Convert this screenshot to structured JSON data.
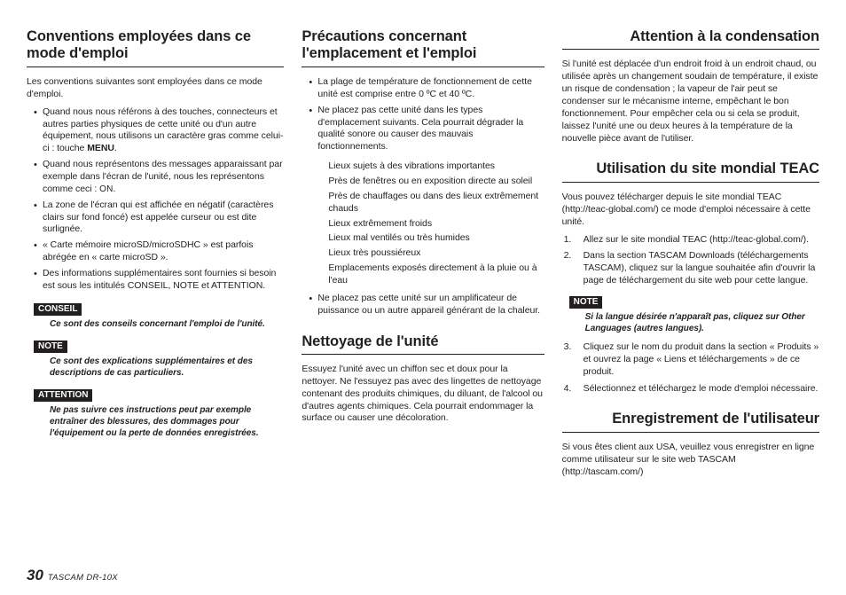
{
  "col1": {
    "h1": "Conventions employées dans ce mode d'emploi",
    "intro": "Les conventions suivantes sont employées dans ce mode d'emploi.",
    "b1a": "Quand nous nous référons à des touches, connecteurs et autres parties physiques de cette unité ou d'un autre équipement, nous utilisons un caractère gras comme celui-ci : touche ",
    "b1b": "MENU",
    "b1c": ".",
    "b2a": "Quand nous représentons des messages apparaissant par exemple dans l'écran de l'unité, nous les représentons comme ceci : ",
    "b2b": "ON",
    "b2c": ".",
    "b3": "La zone de l'écran qui est affichée en négatif (caractères clairs sur fond foncé) est appelée curseur ou est dite surlignée.",
    "b4": "« Carte mémoire microSD/microSDHC » est parfois abrégée en « carte microSD ».",
    "b5": "Des informations supplémentaires sont fournies si besoin est sous les intitulés CONSEIL, NOTE et ATTENTION.",
    "tag1": "CONSEIL",
    "tag1body": "Ce sont des conseils concernant l'emploi de l'unité.",
    "tag2": "NOTE",
    "tag2body": "Ce sont des explications supplémentaires et des descriptions de cas particuliers.",
    "tag3": "ATTENTION",
    "tag3body": "Ne pas suivre ces instructions peut par exemple entraîner des blessures, des dommages pour l'équipement ou la perte de données enregistrées."
  },
  "col2": {
    "h1": "Précautions concernant l'emplacement et l'emploi",
    "b1": "La plage de température de fonctionnement de cette unité est comprise entre 0 ºC et 40 ºC.",
    "b2": "Ne placez pas cette unité dans les types d'emplacement suivants. Cela pourrait dégrader la qualité sonore ou causer des mauvais fonctionnements.",
    "s1": "Lieux sujets à des vibrations importantes",
    "s2": "Près de fenêtres ou en exposition directe au soleil",
    "s3": "Près de chauffages ou dans des lieux extrêmement chauds",
    "s4": "Lieux extrêmement froids",
    "s5": "Lieux mal ventilés ou très humides",
    "s6": "Lieux très poussiéreux",
    "s7": "Emplacements exposés directement à la pluie ou à l'eau",
    "b3": "Ne placez pas cette unité sur un amplificateur de puissance ou un autre appareil générant de la chaleur.",
    "h2": "Nettoyage de l'unité",
    "p2": "Essuyez l'unité avec un chiffon sec et doux pour la nettoyer. Ne l'essuyez pas avec des lingettes de nettoyage contenant des produits chimiques, du diluant, de l'alcool ou d'autres agents chimiques. Cela pourrait endommager la surface ou causer une décoloration."
  },
  "col3": {
    "h1": "Attention à la condensation",
    "p1": "Si l'unité est déplacée d'un endroit froid à un endroit chaud, ou utilisée après un changement soudain de température, il existe un risque de condensation ; la vapeur de l'air peut se condenser sur le mécanisme interne, empêchant le bon fonctionnement. Pour empêcher cela ou si cela se produit, laissez l'unité une ou deux heures à la température de la nouvelle pièce avant de l'utiliser.",
    "h2": "Utilisation du site mondial TEAC",
    "p2": "Vous pouvez télécharger depuis le site mondial TEAC (http://teac-global.com/) ce mode d'emploi nécessaire à cette unité.",
    "n1": "Allez sur le site mondial TEAC (http://teac-global.com/).",
    "n2": "Dans la section TASCAM Downloads (téléchargements TASCAM), cliquez sur la langue souhaitée afin d'ouvrir la page de téléchargement du site web pour cette langue.",
    "tag1": "NOTE",
    "tag1body": "Si la langue désirée n'apparaît pas, cliquez sur Other Languages (autres langues).",
    "n3": "Cliquez sur le nom du produit dans la section « Produits » et ouvrez la page « Liens et téléchargements » de ce produit.",
    "n4": "Sélectionnez et téléchargez le mode d'emploi nécessaire.",
    "h3": "Enregistrement de l'utilisateur",
    "p3": "Si vous êtes client aux USA, veuillez vous enregistrer en ligne comme utilisateur sur le site web TASCAM (http://tascam.com/)"
  },
  "footer": {
    "page": "30",
    "model": "TASCAM  DR-10X"
  }
}
